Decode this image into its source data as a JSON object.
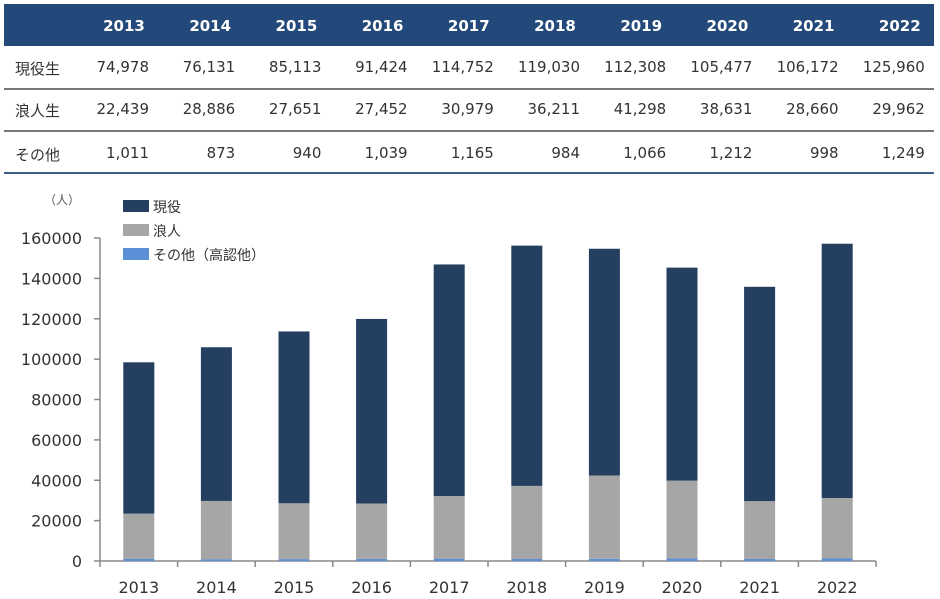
{
  "table": {
    "years": [
      "2013",
      "2014",
      "2015",
      "2016",
      "2017",
      "2018",
      "2019",
      "2020",
      "2021",
      "2022"
    ],
    "rows": [
      {
        "label": "現役生",
        "values": [
          "74,978",
          "76,131",
          "85,113",
          "91,424",
          "114,752",
          "119,030",
          "112,308",
          "105,477",
          "106,172",
          "125,960"
        ]
      },
      {
        "label": "浪人生",
        "values": [
          "22,439",
          "28,886",
          "27,651",
          "27,452",
          "30,979",
          "36,211",
          "41,298",
          "38,631",
          "28,660",
          "29,962"
        ]
      },
      {
        "label": "その他",
        "values": [
          "1,011",
          "873",
          "940",
          "1,039",
          "1,165",
          "984",
          "1,066",
          "1,212",
          "998",
          "1,249"
        ]
      }
    ]
  },
  "chart_data": {
    "type": "bar",
    "stacked": true,
    "ylabel": "（人）",
    "ylim": [
      0,
      160000
    ],
    "yticks": [
      0,
      20000,
      40000,
      60000,
      80000,
      100000,
      120000,
      140000,
      160000
    ],
    "categories": [
      "2013",
      "2014",
      "2015",
      "2016",
      "2017",
      "2018",
      "2019",
      "2020",
      "2021",
      "2022"
    ],
    "series": [
      {
        "name": "その他（高認他）",
        "color": "#5b8fd6",
        "values": [
          1011,
          873,
          940,
          1039,
          1165,
          984,
          1066,
          1212,
          998,
          1249
        ]
      },
      {
        "name": "浪人",
        "color": "#a6a6a6",
        "values": [
          22439,
          28886,
          27651,
          27452,
          30979,
          36211,
          41298,
          38631,
          28660,
          29962
        ]
      },
      {
        "name": "現役",
        "color": "#243f60",
        "values": [
          74978,
          76131,
          85113,
          91424,
          114752,
          119030,
          112308,
          105477,
          106172,
          125960
        ]
      }
    ],
    "legend_order": [
      "現役",
      "浪人",
      "その他（高認他）"
    ],
    "legend_position": "top-left",
    "grid": false
  }
}
